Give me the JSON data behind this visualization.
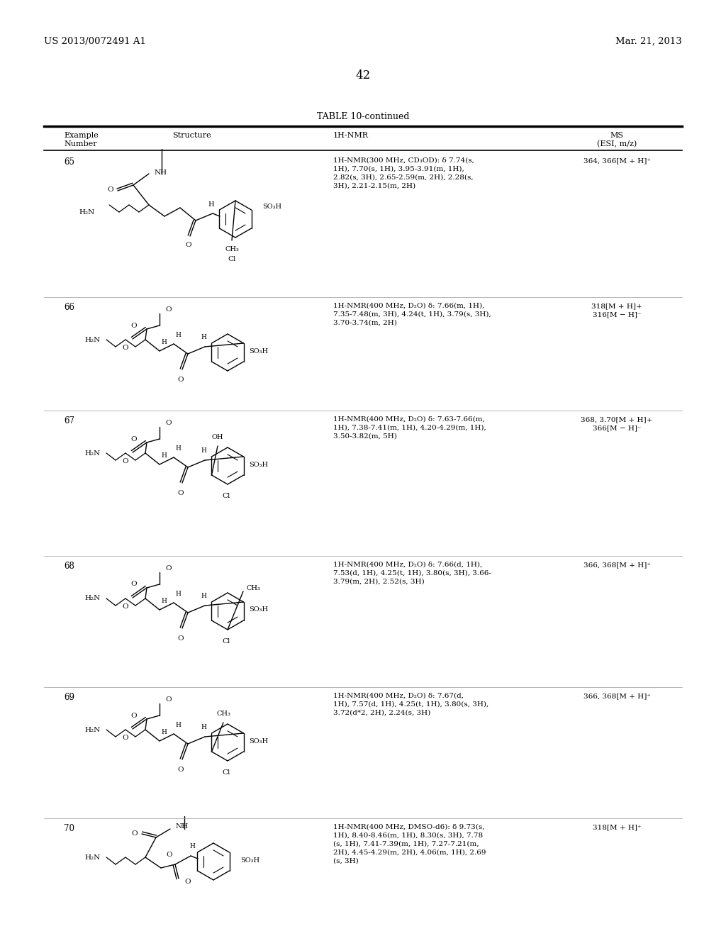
{
  "page_number": "42",
  "patent_left": "US 2013/0072491 A1",
  "patent_right": "Mar. 21, 2013",
  "table_title": "TABLE 10-continued",
  "background_color": "#ffffff",
  "rows": [
    {
      "number": "65",
      "nmr": "1H-NMR(300 MHz, CD₃OD): δ 7.74(s,\n1H), 7.70(s, 1H), 3.95-3.91(m, 1H),\n2.82(s, 3H), 2.65-2.59(m, 2H), 2.28(s,\n3H), 2.21-2.15(m, 2H)",
      "ms": "364, 366[M + H]⁺"
    },
    {
      "number": "66",
      "nmr": "1H-NMR(400 MHz, D₂O) δ: 7.66(m, 1H),\n7.35-7.48(m, 3H), 4.24(t, 1H), 3.79(s, 3H),\n3.70-3.74(m, 2H)",
      "ms": "318[M + H]+\n316[M − H]⁻"
    },
    {
      "number": "67",
      "nmr": "1H-NMR(400 MHz, D₂O) δ: 7.63-7.66(m,\n1H), 7.38-7.41(m, 1H), 4.20-4.29(m, 1H),\n3.50-3.82(m, 5H)",
      "ms": "368, 3.70[M + H]+\n366[M − H]⁻"
    },
    {
      "number": "68",
      "nmr": "1H-NMR(400 MHz, D₂O) δ: 7.66(d, 1H),\n7.53(d, 1H), 4.25(t, 1H), 3.80(s, 3H), 3.66-\n3.79(m, 2H), 2.52(s, 3H)",
      "ms": "366, 368[M + H]⁺"
    },
    {
      "number": "69",
      "nmr": "1H-NMR(400 MHz, D₂O) δ: 7.67(d,\n1H), 7.57(d, 1H), 4.25(t, 1H), 3.80(s, 3H),\n3.72(d*2, 2H), 2.24(s, 3H)",
      "ms": "366, 368[M + H]⁺"
    },
    {
      "number": "70",
      "nmr": "1H-NMR(400 MHz, DMSO-d6): δ 9.73(s,\n1H), 8.40-8.46(m, 1H), 8.30(s, 3H), 7.78\n(s, 1H), 7.41-7.39(m, 1H), 7.27-7.21(m,\n2H), 4.45-4.29(m, 2H), 4.06(m, 1H), 2.69\n(s, 3H)",
      "ms": "318[M + H]⁺"
    }
  ]
}
